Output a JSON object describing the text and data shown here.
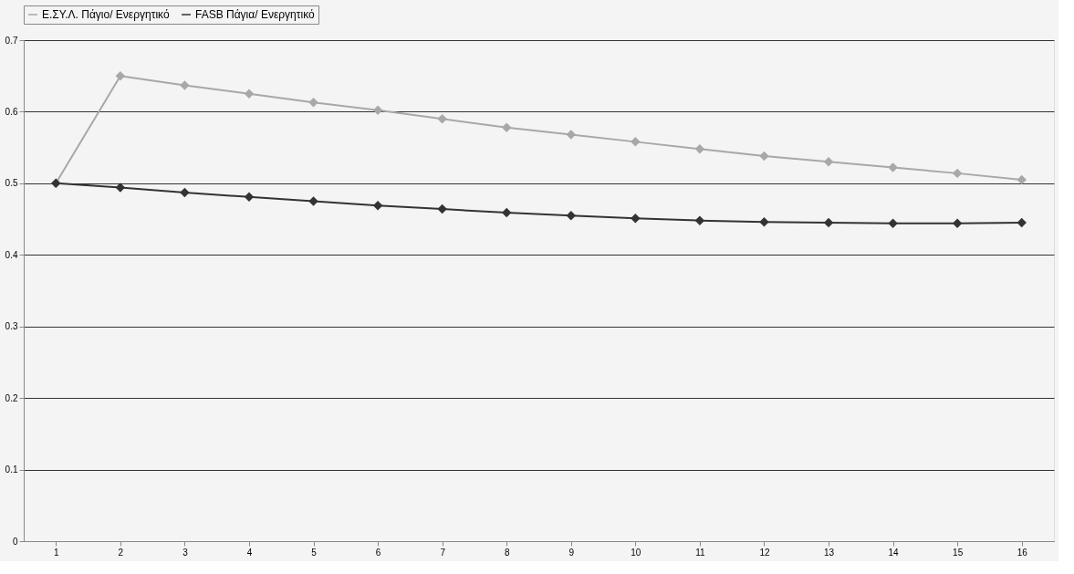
{
  "chart_data": {
    "type": "line",
    "categories": [
      "1",
      "2",
      "3",
      "4",
      "5",
      "6",
      "7",
      "8",
      "9",
      "10",
      "11",
      "12",
      "13",
      "14",
      "15",
      "16"
    ],
    "series": [
      {
        "name": "Ε.ΣΥ.Λ. Πάγιο/ Ενεργητικό",
        "color": "#a8a8a8",
        "values": [
          0.5,
          0.65,
          0.637,
          0.625,
          0.613,
          0.602,
          0.59,
          0.578,
          0.568,
          0.558,
          0.548,
          0.538,
          0.53,
          0.522,
          0.514,
          0.505
        ]
      },
      {
        "name": "FASB Πάγια/ Ενεργητικό",
        "color": "#333333",
        "values": [
          0.5,
          0.494,
          0.487,
          0.481,
          0.475,
          0.469,
          0.464,
          0.459,
          0.455,
          0.451,
          0.448,
          0.446,
          0.445,
          0.444,
          0.444,
          0.445
        ]
      }
    ],
    "ylim": [
      0,
      0.7
    ],
    "yticks": [
      0,
      0.1,
      0.2,
      0.3,
      0.4,
      0.5,
      0.6,
      0.7
    ],
    "grid": "y",
    "legend": "top",
    "marker": "diamond",
    "line_style": "solid"
  }
}
